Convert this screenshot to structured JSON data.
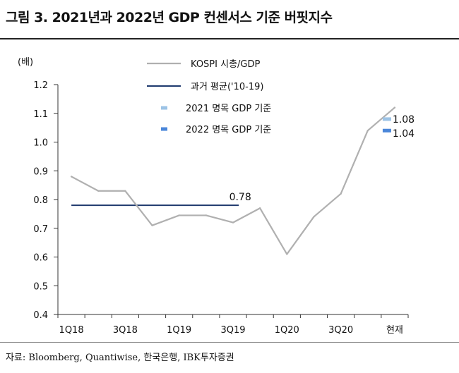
{
  "title": "그림 3. 2021년과 2022년 GDP 컨센서스 기준 버핏지수",
  "source": "자료: Bloomberg, Quantiwise, 한국은행, IBK투자증권",
  "chart_data": {
    "type": "line",
    "unit_label": "(배)",
    "ylim": [
      0.4,
      1.2
    ],
    "yticks": [
      "1.2",
      "1.1",
      "1.0",
      "0.9",
      "0.8",
      "0.7",
      "0.6",
      "0.5",
      "0.4"
    ],
    "xtick_labels": [
      "1Q18",
      "3Q18",
      "1Q19",
      "3Q19",
      "1Q20",
      "3Q20",
      "현재"
    ],
    "categories": [
      "1Q18",
      "2Q18",
      "3Q18",
      "4Q18",
      "1Q19",
      "2Q19",
      "3Q19",
      "4Q19",
      "1Q20",
      "2Q20",
      "3Q20",
      "4Q20",
      "현재"
    ],
    "series": [
      {
        "name": "KOSPI 시총/GDP",
        "color": "#b0b0b0",
        "values": [
          0.88,
          0.83,
          0.83,
          0.71,
          0.745,
          0.745,
          0.72,
          0.77,
          0.61,
          0.74,
          0.82,
          1.04,
          1.12
        ]
      }
    ],
    "average": {
      "name": "과거 평균('10-19)",
      "color": "#1f3a6e",
      "value": 0.78,
      "label": "0.78",
      "from": "1Q18",
      "to": "4Q19"
    },
    "markers": [
      {
        "name": "2021 명목 GDP 기준",
        "color": "#9cc3e6",
        "value": 1.08,
        "label": "1.08",
        "at": "현재"
      },
      {
        "name": "2022 명목 GDP 기준",
        "color": "#4a86d9",
        "value": 1.04,
        "label": "1.04",
        "at": "현재"
      }
    ],
    "legend_position": "top-right",
    "grid": false
  }
}
